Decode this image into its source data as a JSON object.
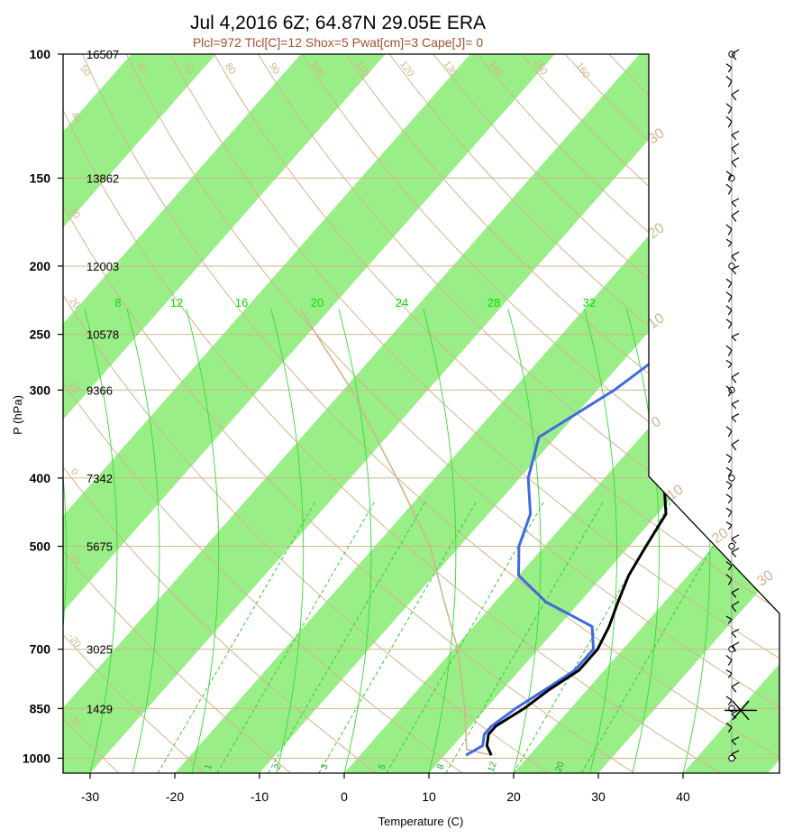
{
  "title": "Jul 4,2016 6Z; 64.87N 29.05E ERA",
  "subtitle": "Plcl=972 Tlcl[C]=12 Shox=5 Pwat[cm]=3 Cape[J]= 0",
  "chart_data": {
    "type": "line",
    "subtype": "skew-T log-P sounding",
    "xlabel": "Temperature (C)",
    "ylabel": "P (hPa)",
    "x_ticks": [
      -30,
      -20,
      -10,
      0,
      10,
      20,
      30,
      40
    ],
    "x_tick_labels": [
      "-30",
      "-20",
      "-10",
      "0",
      "10",
      "20",
      "30",
      "40"
    ],
    "xlim": [
      -33,
      36
    ],
    "p_ticks": [
      100,
      150,
      200,
      250,
      300,
      400,
      500,
      700,
      850,
      1000
    ],
    "p_tick_labels": [
      "100",
      "150",
      "200",
      "250",
      "300",
      "400",
      "500",
      "700",
      "850",
      "1000"
    ],
    "plim": [
      1050,
      100
    ],
    "heights": [
      {
        "p": 100,
        "label": "16507"
      },
      {
        "p": 150,
        "label": "13862"
      },
      {
        "p": 200,
        "label": "12003"
      },
      {
        "p": 250,
        "label": "10578"
      },
      {
        "p": 300,
        "label": "9366"
      },
      {
        "p": 400,
        "label": "7342"
      },
      {
        "p": 500,
        "label": "5675"
      },
      {
        "p": 700,
        "label": "3025"
      },
      {
        "p": 850,
        "label": "1429"
      }
    ],
    "isotherm_bands_deg_c": [
      -100,
      -80,
      -60,
      -40,
      -20,
      0,
      20,
      40
    ],
    "series": [
      {
        "name": "",
        "color": "#000000",
        "points": [
          [
            990,
            15.5
          ],
          [
            960,
            14.0
          ],
          [
            925,
            13.0
          ],
          [
            900,
            13.0
          ],
          [
            850,
            14.5
          ],
          [
            800,
            15.5
          ],
          [
            750,
            17.0
          ],
          [
            700,
            17.0
          ],
          [
            650,
            16.0
          ],
          [
            600,
            14.5
          ],
          [
            550,
            13.0
          ],
          [
            500,
            12.0
          ],
          [
            450,
            11.0
          ],
          [
            400,
            7.0
          ],
          [
            350,
            3.0
          ],
          [
            300,
            -1.5
          ],
          [
            250,
            -4.5
          ],
          [
            225,
            -4.5
          ],
          [
            200,
            1.0
          ],
          [
            175,
            14.5
          ],
          [
            150,
            19.0
          ],
          [
            125,
            27.0
          ],
          [
            100,
            38.5
          ]
        ]
      },
      {
        "name": "",
        "color": "#4169e1",
        "points": [
          [
            990,
            12.5
          ],
          [
            960,
            13.5
          ],
          [
            925,
            12.5
          ],
          [
            900,
            12.5
          ],
          [
            850,
            13.5
          ],
          [
            800,
            15.0
          ],
          [
            750,
            16.5
          ],
          [
            700,
            16.5
          ],
          [
            650,
            14.0
          ],
          [
            600,
            6.0
          ],
          [
            550,
            0.0
          ],
          [
            500,
            -3.0
          ],
          [
            450,
            -5.0
          ],
          [
            400,
            -9.0
          ],
          [
            350,
            -12.0
          ],
          [
            300,
            -8.0
          ],
          [
            250,
            -5.0
          ],
          [
            225,
            -5.5
          ],
          [
            200,
            -7.0
          ],
          [
            175,
            -16.0
          ],
          [
            150,
            -16.0
          ],
          [
            125,
            -13.0
          ],
          [
            100,
            -6.0
          ]
        ]
      },
      {
        "name": "",
        "color": "#d2b48c",
        "points": [
          [
            990,
            15.5
          ],
          [
            972,
            12.0
          ],
          [
            850,
            7.5
          ],
          [
            700,
            0.5
          ],
          [
            600,
            -6.0
          ],
          [
            500,
            -13.5
          ],
          [
            400,
            -24.5
          ],
          [
            300,
            -39.0
          ],
          [
            250,
            -49.0
          ],
          [
            230,
            -53.5
          ]
        ]
      }
    ],
    "mixing_ratio_labels_top": [
      "8",
      "12",
      "16",
      "20",
      "24",
      "28",
      "32"
    ],
    "mixing_ratio_labels_bottom": [
      "1",
      "2",
      "3",
      "5",
      "8",
      "12",
      "20"
    ],
    "dry_adiabat_labels": [
      "40",
      "50",
      "60",
      "70",
      "80",
      "90",
      "100",
      "110",
      "120",
      "130",
      "140",
      "150",
      "160",
      "30",
      "20",
      "10",
      "0",
      "-10",
      "-20",
      "-30"
    ],
    "moist_adiabat_labels": [
      "30",
      "20",
      "10",
      "0",
      "10",
      "20",
      "30"
    ]
  }
}
